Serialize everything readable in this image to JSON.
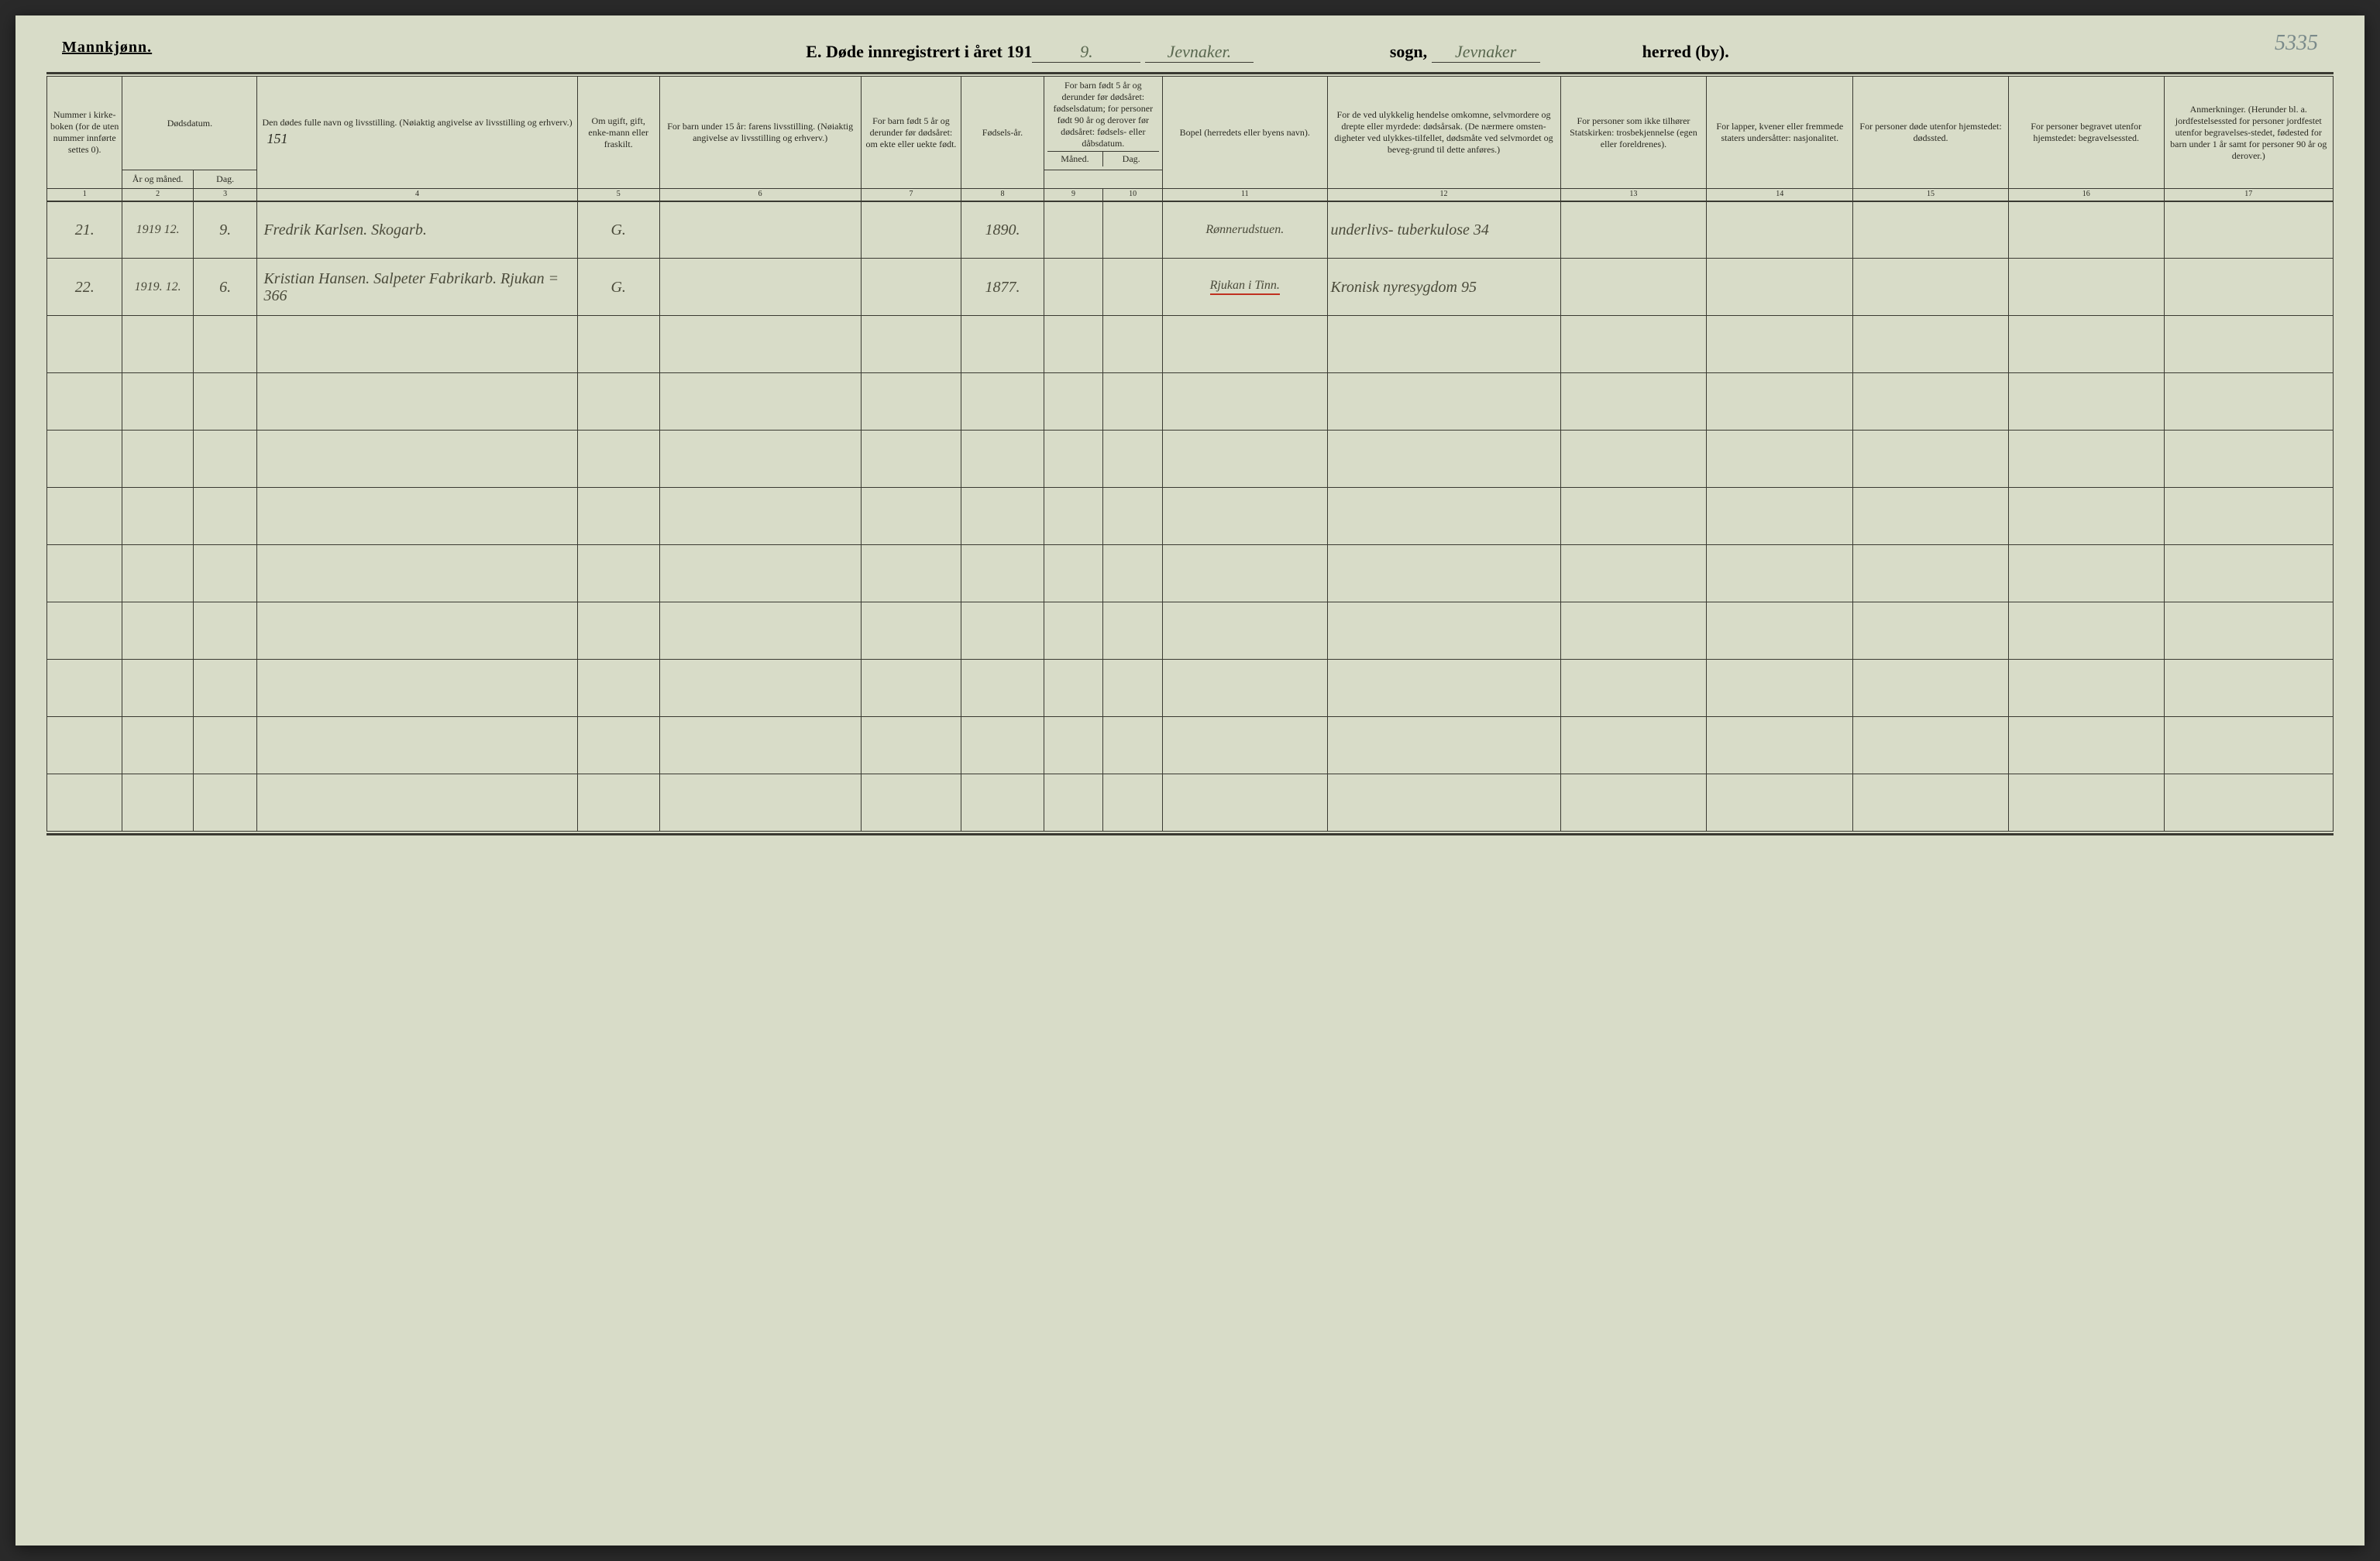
{
  "page_number_annotation": "5335",
  "header": {
    "left_label": "Mannkjønn.",
    "title_prefix": "E. Døde innregistrert i året 191",
    "year_suffix": "9.",
    "parish_handwritten": "Jevnaker.",
    "sogn_label": "sogn,",
    "sogn_handwritten": "Jevnaker",
    "herred_label": "herred (by)."
  },
  "columns": {
    "c1": "Nummer i kirke-boken (for de uten nummer innførte settes 0).",
    "c2_top": "Dødsdatum.",
    "c2a": "År og måned.",
    "c2b": "Dag.",
    "c4": "Den dødes fulle navn og livsstilling. (Nøiaktig angivelse av livsstilling og erhverv.)",
    "c5": "Om ugift, gift, enke-mann eller fraskilt.",
    "c6": "For barn under 15 år: farens livsstilling. (Nøiaktig angivelse av livsstilling og erhverv.)",
    "c7": "For barn født 5 år og derunder før dødsåret: om ekte eller uekte født.",
    "c8": "Fødsels-år.",
    "c9_top": "For barn født 5 år og derunder før dødsåret: fødselsdatum; for personer født 90 år og derover før dødsåret: fødsels- eller dåbsdatum.",
    "c9a": "Måned.",
    "c9b": "Dag.",
    "c11": "Bopel (herredets eller byens navn).",
    "c12": "For de ved ulykkelig hendelse omkomne, selvmordere og drepte eller myrdede: dødsårsak. (De nærmere omsten-digheter ved ulykkes-tilfellet, dødsmåte ved selvmordet og beveg-grund til dette anføres.)",
    "c13": "For personer som ikke tilhører Statskirken: trosbekjennelse (egen eller foreldrenes).",
    "c14": "For lapper, kvener eller fremmede staters undersåtter: nasjonalitet.",
    "c15": "For personer døde utenfor hjemstedet: dødssted.",
    "c16": "For personer begravet utenfor hjemstedet: begravelsessted.",
    "c17": "Anmerkninger. (Herunder bl. a. jordfestelsessted for personer jordfestet utenfor begravelses-stedet, fødested for barn under 1 år samt for personer 90 år og derover.)"
  },
  "colnums": [
    "1",
    "2",
    "3",
    "4",
    "5",
    "6",
    "7",
    "8",
    "9",
    "10",
    "11",
    "12",
    "13",
    "14",
    "15",
    "16",
    "17"
  ],
  "page_note": "151",
  "rows": [
    {
      "num": "21.",
      "year_month": "1919 12.",
      "day": "9.",
      "name": "Fredrik Karlsen. Skogarb.",
      "status": "G.",
      "father": "",
      "c7": "",
      "birth_year": "1890.",
      "c9": "",
      "c10": "",
      "residence": "Rønnerudstuen.",
      "cause": "underlivs- tuberkulose 34",
      "c13": "",
      "c14": "",
      "c15": "",
      "c16": "",
      "c17": ""
    },
    {
      "num": "22.",
      "year_month": "1919. 12.",
      "day": "6.",
      "name": "Kristian Hansen. Salpeter Fabrikarb. Rjukan = 366",
      "status": "G.",
      "father": "",
      "c7": "",
      "birth_year": "1877.",
      "c9": "",
      "c10": "",
      "residence": "Rjukan i Tinn.",
      "cause": "Kronisk nyresygdom 95",
      "c13": "",
      "c14": "",
      "c15": "",
      "c16": "",
      "c17": ""
    }
  ],
  "empty_row_count": 9,
  "styling": {
    "page_bg": "#d8dcc8",
    "border_color": "#3a3a32",
    "handwriting_color": "#4a4a3a",
    "red_underline": "#c03020",
    "header_font_size_pt": 16,
    "body_font_size_pt": 9,
    "handwriting_font_size_pt": 15,
    "col_widths_pct": [
      3.3,
      3.1,
      2.8,
      14.0,
      3.6,
      8.8,
      4.4,
      3.6,
      2.6,
      2.6,
      7.2,
      10.2,
      6.4,
      6.4,
      6.8,
      6.8,
      7.4
    ]
  }
}
